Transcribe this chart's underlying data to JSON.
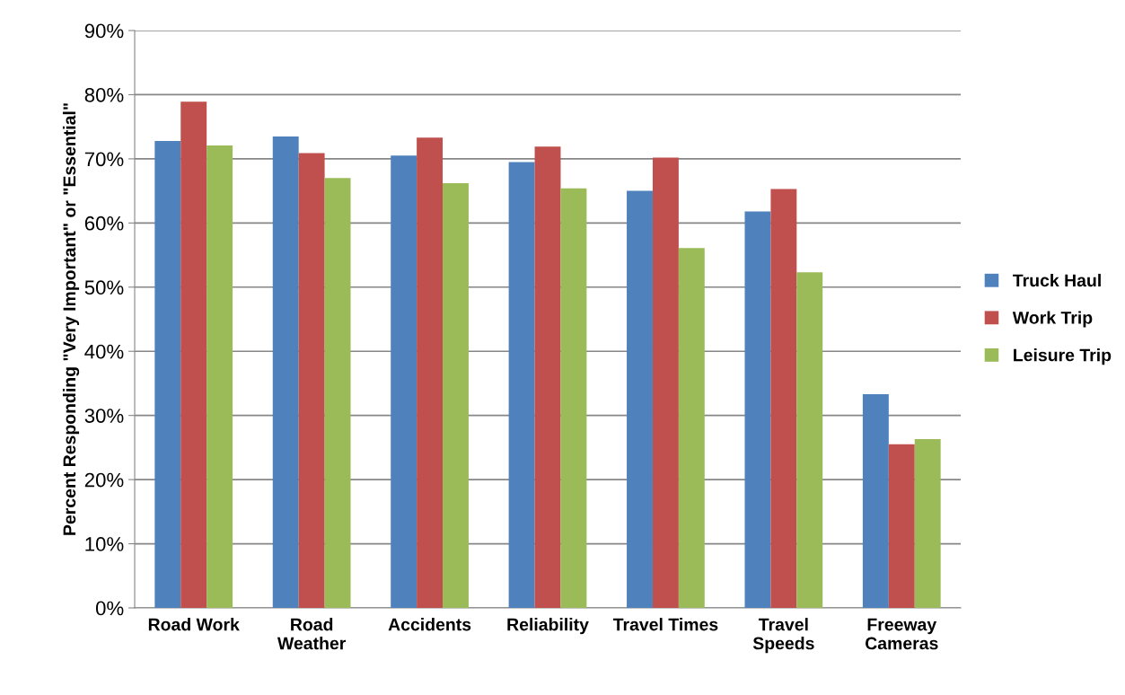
{
  "chart_data": {
    "type": "bar",
    "ylabel": "Percent Responding \"Very Important\" or \"Essential\"",
    "categories": [
      "Road Work",
      "Road\nWeather",
      "Accidents",
      "Reliability",
      "Travel Times",
      "Travel\nSpeeds",
      "Freeway\nCameras"
    ],
    "series": [
      {
        "name": "Truck Haul",
        "color": "#4f81bd",
        "values": [
          72.8,
          73.5,
          70.5,
          69.5,
          65.0,
          61.8,
          33.3
        ]
      },
      {
        "name": "Work Trip",
        "color": "#c0504d",
        "values": [
          78.9,
          70.9,
          73.3,
          71.9,
          70.2,
          65.3,
          25.5
        ]
      },
      {
        "name": "Leisure Trip",
        "color": "#9bbb59",
        "values": [
          72.1,
          67.0,
          66.2,
          65.4,
          56.1,
          52.3,
          26.3
        ]
      }
    ],
    "ylim": [
      0,
      90
    ],
    "yticks": [
      {
        "value": 0,
        "label": "0%"
      },
      {
        "value": 10,
        "label": "10%"
      },
      {
        "value": 20,
        "label": "20%"
      },
      {
        "value": 30,
        "label": "30%"
      },
      {
        "value": 40,
        "label": "40%"
      },
      {
        "value": 50,
        "label": "50%"
      },
      {
        "value": 60,
        "label": "60%"
      },
      {
        "value": 70,
        "label": "70%"
      },
      {
        "value": 80,
        "label": "80%"
      },
      {
        "value": 90,
        "label": "90%"
      }
    ],
    "grid": "y",
    "legend": "right"
  }
}
